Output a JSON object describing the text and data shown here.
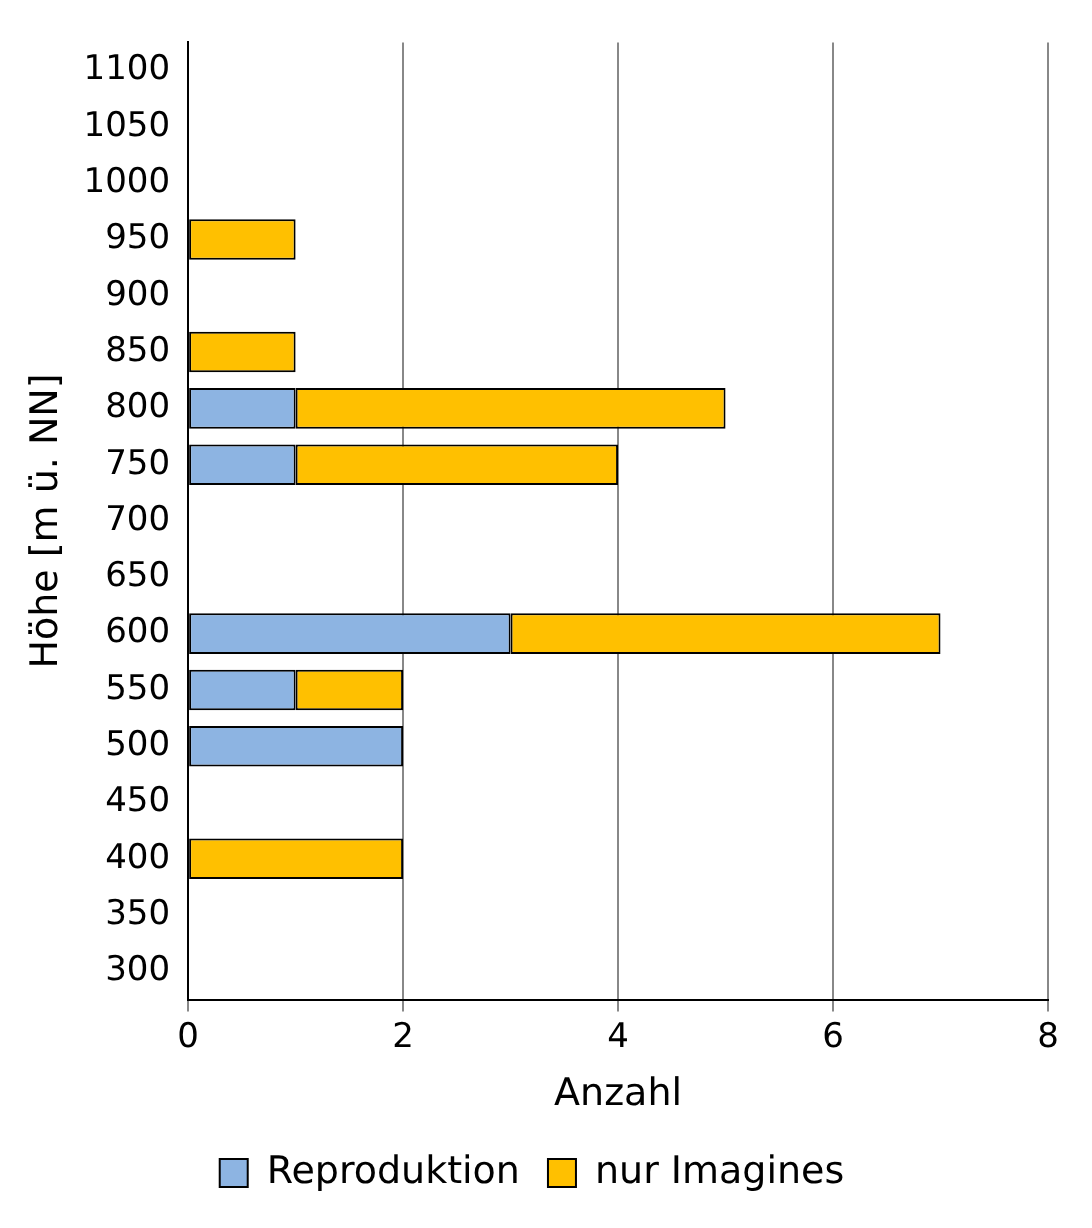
{
  "chart_data": {
    "type": "bar",
    "orientation": "horizontal",
    "stacked": true,
    "categories": [
      "1100",
      "1050",
      "1000",
      "950",
      "900",
      "850",
      "800",
      "750",
      "700",
      "650",
      "600",
      "550",
      "500",
      "450",
      "400",
      "350",
      "300"
    ],
    "series": [
      {
        "name": "Reproduktion",
        "color": "#8db4e2",
        "values": [
          null,
          null,
          null,
          null,
          null,
          null,
          1,
          1,
          null,
          null,
          3,
          1,
          2,
          null,
          null,
          null,
          null
        ]
      },
      {
        "name": "nur Imagines",
        "color": "#ffc000",
        "values": [
          null,
          null,
          null,
          1,
          null,
          1,
          4,
          3,
          null,
          null,
          4,
          1,
          null,
          null,
          2,
          null,
          null
        ]
      }
    ],
    "xlabel": "Anzahl",
    "ylabel": "Höhe [m ü. NN]",
    "xlim": [
      0,
      8
    ],
    "xticks": [
      0,
      2,
      4,
      6,
      8
    ],
    "grid": "x",
    "legend": "bottom"
  }
}
